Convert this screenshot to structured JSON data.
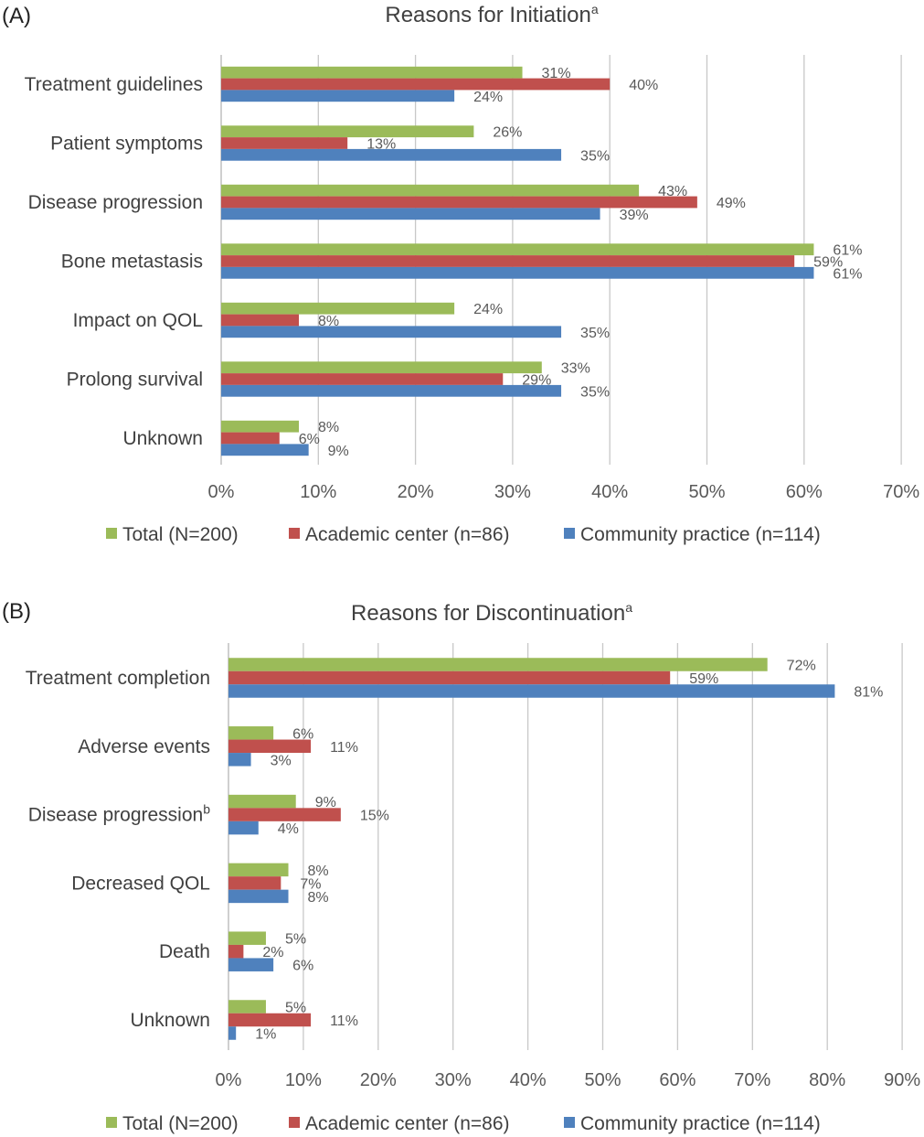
{
  "panels": [
    {
      "panel_label": "(A)",
      "title": "Reasons for Initiation",
      "title_superscript": "a"
    },
    {
      "panel_label": "(B)",
      "title": "Reasons for Discontinuation",
      "title_superscript": "a"
    }
  ],
  "colors": {
    "total": "#9bbb59",
    "academic": "#c0504d",
    "community": "#4f81bd",
    "grid": "#c8c8c8",
    "axis": "#bfbfbf"
  },
  "chart_data": [
    {
      "type": "bar",
      "orientation": "horizontal",
      "title": "Reasons for Initiation",
      "categories": [
        "Treatment guidelines",
        "Patient symptoms",
        "Disease progression",
        "Bone metastasis",
        "Impact on QOL",
        "Prolong survival",
        "Unknown"
      ],
      "category_superscripts": [
        "",
        "",
        "",
        "",
        "",
        "",
        ""
      ],
      "series": [
        {
          "name": "Total (N=200)",
          "values": [
            31,
            26,
            43,
            61,
            24,
            33,
            8
          ]
        },
        {
          "name": "Academic center (n=86)",
          "values": [
            40,
            13,
            49,
            59,
            8,
            29,
            6
          ]
        },
        {
          "name": "Community practice (n=114)",
          "values": [
            24,
            35,
            39,
            61,
            35,
            35,
            9
          ]
        }
      ],
      "xlim": [
        0,
        70
      ],
      "xticks": [
        "0%",
        "10%",
        "20%",
        "30%",
        "40%",
        "50%",
        "60%",
        "70%"
      ],
      "value_suffix": "%",
      "grid": true,
      "legend": "bottom"
    },
    {
      "type": "bar",
      "orientation": "horizontal",
      "title": "Reasons for Discontinuation",
      "categories": [
        "Treatment completion",
        "Adverse events",
        "Disease progression",
        "Decreased QOL",
        "Death",
        "Unknown"
      ],
      "category_superscripts": [
        "",
        "",
        "b",
        "",
        "",
        ""
      ],
      "series": [
        {
          "name": "Total (N=200)",
          "values": [
            72,
            6,
            9,
            8,
            5,
            5
          ]
        },
        {
          "name": "Academic center (n=86)",
          "values": [
            59,
            11,
            15,
            7,
            2,
            11
          ]
        },
        {
          "name": "Community practice (n=114)",
          "values": [
            81,
            3,
            4,
            8,
            6,
            1
          ]
        }
      ],
      "xlim": [
        0,
        90
      ],
      "xticks": [
        "0%",
        "10%",
        "20%",
        "30%",
        "40%",
        "50%",
        "60%",
        "70%",
        "80%",
        "90%"
      ],
      "value_suffix": "%",
      "grid": true,
      "legend": "bottom"
    }
  ]
}
